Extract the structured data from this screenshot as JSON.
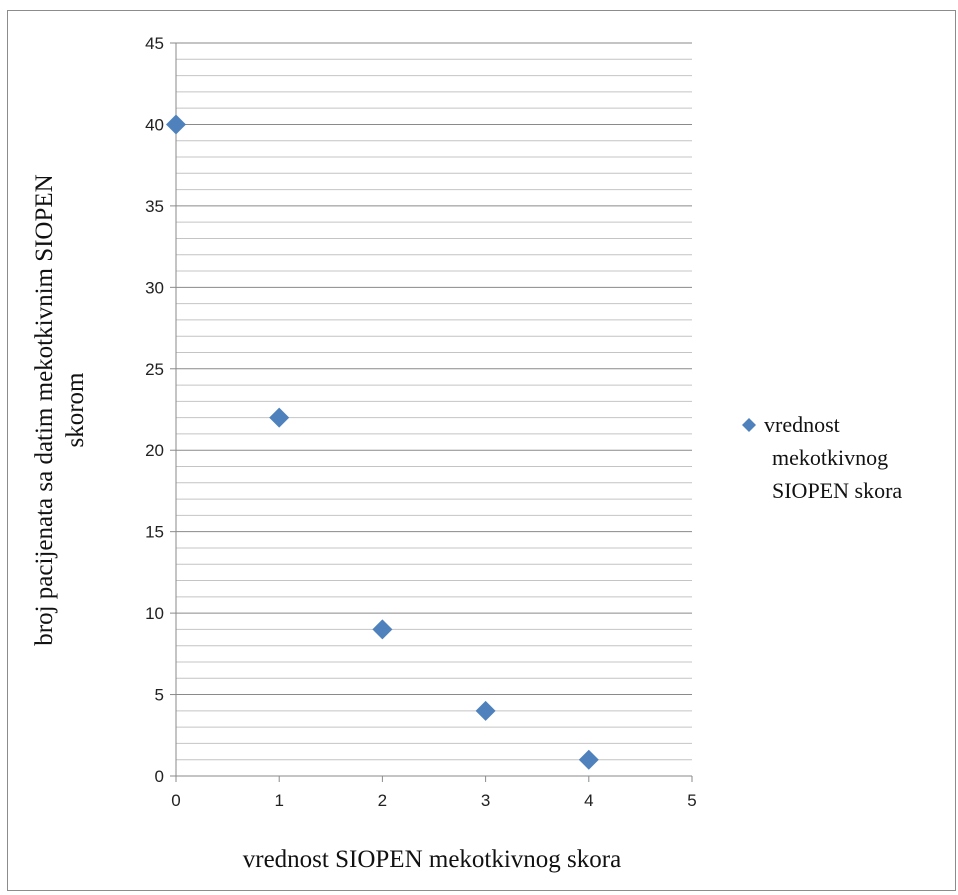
{
  "chart_data": {
    "type": "scatter",
    "xlabel": "vrednost  SIOPEN mekotkivnog skora",
    "ylabel": [
      "broj pacijenata sa datim mekotkivnim SIOPEN",
      "skorom"
    ],
    "xlim": [
      0,
      5
    ],
    "ylim": [
      0,
      45
    ],
    "x_ticks": [
      "0",
      "1",
      "2",
      "3",
      "4",
      "5"
    ],
    "y_ticks": [
      "0",
      "5",
      "10",
      "15",
      "20",
      "25",
      "30",
      "35",
      "40",
      "45"
    ],
    "grid": "horizontal major and minor",
    "legend_position": "right",
    "marker": "diamond",
    "series": [
      {
        "name": [
          "vrednost",
          "mekotkivnog",
          "SIOPEN skora"
        ],
        "color": "#4f81bd",
        "points": [
          {
            "x": 0,
            "y": 40
          },
          {
            "x": 1,
            "y": 22
          },
          {
            "x": 2,
            "y": 9
          },
          {
            "x": 3,
            "y": 4
          },
          {
            "x": 4,
            "y": 1
          }
        ]
      }
    ]
  }
}
